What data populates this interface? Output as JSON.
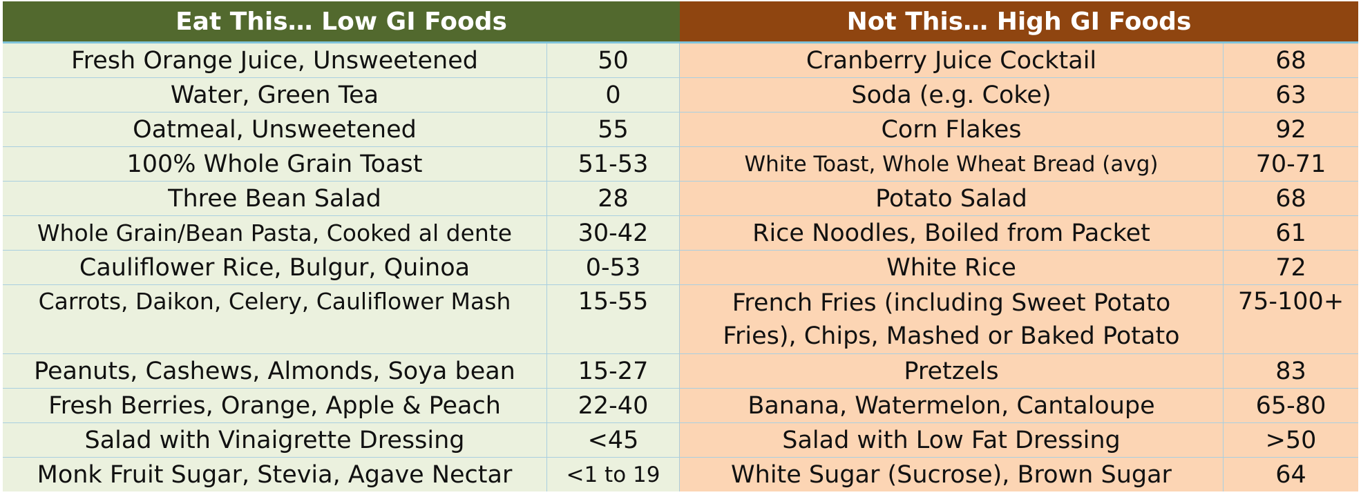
{
  "headers": {
    "low": "Eat This… Low GI Foods",
    "high": "Not This… High GI Foods"
  },
  "rows": [
    {
      "low_food": "Fresh Orange Juice, Unsweetened",
      "low_gi": "50",
      "high_food": "Cranberry Juice Cocktail",
      "high_gi": "68"
    },
    {
      "low_food": "Water, Green Tea",
      "low_gi": "0",
      "high_food": "Soda (e.g. Coke)",
      "high_gi": "63"
    },
    {
      "low_food": "Oatmeal, Unsweetened",
      "low_gi": "55",
      "high_food": "Corn Flakes",
      "high_gi": "92"
    },
    {
      "low_food": "100% Whole Grain Toast",
      "low_gi": "51-53",
      "high_food": "White Toast, Whole Wheat Bread (avg)",
      "high_gi": "70-71"
    },
    {
      "low_food": "Three Bean Salad",
      "low_gi": "28",
      "high_food": "Potato Salad",
      "high_gi": "68"
    },
    {
      "low_food": "Whole Grain/Bean Pasta, Cooked al dente",
      "low_gi": "30-42",
      "high_food": "Rice Noodles, Boiled from Packet",
      "high_gi": "61"
    },
    {
      "low_food": "Cauliflower Rice, Bulgur, Quinoa",
      "low_gi": "0-53",
      "high_food": "White Rice",
      "high_gi": "72"
    },
    {
      "low_food": "Carrots, Daikon, Celery, Cauliflower Mash",
      "low_gi": "15-55",
      "high_food": "French Fries (including Sweet Potato Fries), Chips, Mashed or Baked Potato",
      "high_gi": "75-100+"
    },
    {
      "low_food": "Peanuts, Cashews, Almonds, Soya bean",
      "low_gi": "15-27",
      "high_food": "Pretzels",
      "high_gi": "83"
    },
    {
      "low_food": "Fresh Berries, Orange, Apple & Peach",
      "low_gi": "22-40",
      "high_food": "Banana, Watermelon, Cantaloupe",
      "high_gi": "65-80"
    },
    {
      "low_food": "Salad with Vinaigrette Dressing",
      "low_gi": "<45",
      "high_food": "Salad with Low Fat Dressing",
      "high_gi": ">50"
    },
    {
      "low_food": "Monk Fruit Sugar, Stevia, Agave Nectar",
      "low_gi": "<1 to 19",
      "high_food": "White Sugar (Sucrose), Brown Sugar",
      "high_gi": "64"
    }
  ],
  "colors": {
    "low_header": "#52692e",
    "high_header": "#8f4510",
    "low_cell": "#ebf1de",
    "high_cell": "#fcd5b4",
    "grid": "#a9cfe0"
  }
}
